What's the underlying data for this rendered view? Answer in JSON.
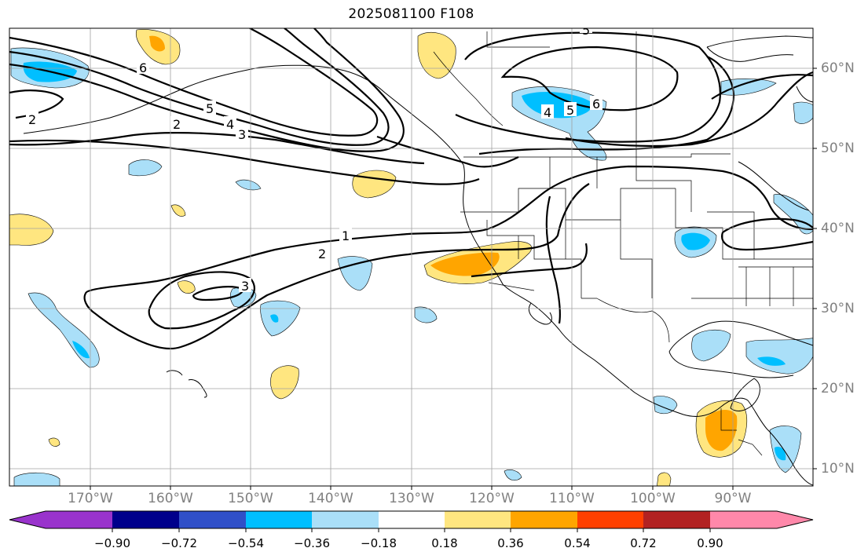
{
  "title": "2025081100 F108",
  "longitude_labels": [
    "170°W",
    "160°W",
    "150°W",
    "140°W",
    "130°W",
    "120°W",
    "110°W",
    "100°W",
    "90°W"
  ],
  "latitude_labels": [
    "60°N",
    "50°N",
    "40°N",
    "30°N",
    "20°N",
    "10°N"
  ],
  "contour_labels": [
    "2",
    "6",
    "5",
    "4",
    "3",
    "2",
    "4",
    "5",
    "6",
    "1",
    "2",
    "3",
    "5"
  ],
  "colorbar": {
    "tick_labels": [
      "−0.90",
      "−0.72",
      "−0.54",
      "−0.36",
      "−0.18",
      "0.18",
      "0.36",
      "0.54",
      "0.72",
      "0.90"
    ],
    "colors": [
      "#9933cc",
      "#00008b",
      "#3050c8",
      "#00bfff",
      "#aadff8",
      "#ffffff",
      "#ffe680",
      "#ffa500",
      "#ff4000",
      "#b22222",
      "#ff88aa"
    ]
  },
  "colors": {
    "grid": "#a0a0a0",
    "coast": "#000000",
    "contour": "#000000"
  }
}
